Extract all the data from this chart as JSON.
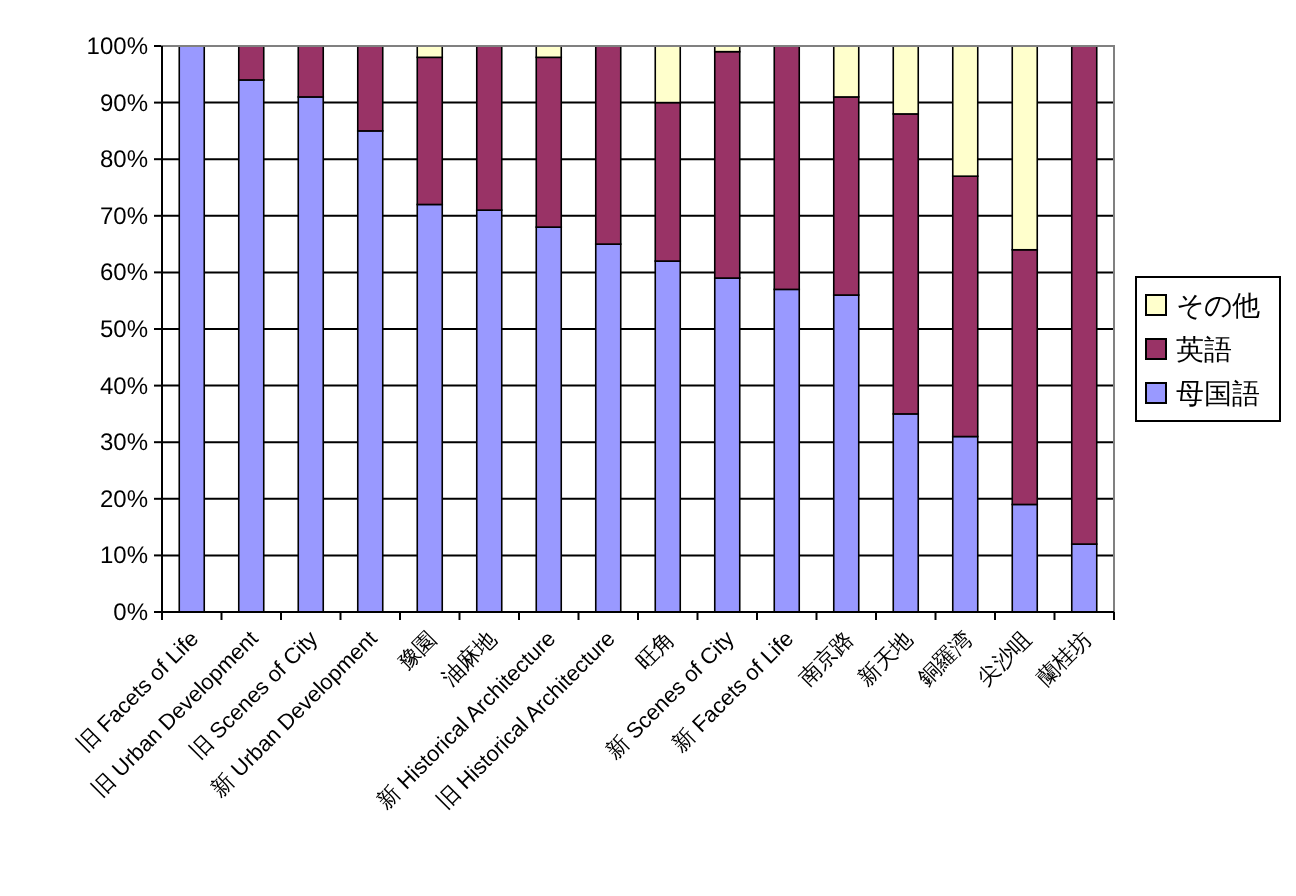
{
  "chart_data": {
    "type": "bar",
    "stacked": true,
    "categories": [
      "旧 Facets of Life",
      "旧 Urban Development",
      "旧 Scenes of City",
      "新 Urban Development",
      "豫園",
      "油麻地",
      "新 Historical Architecture",
      "旧 Historical Architecture",
      "旺角",
      "新 Scenes of City",
      "新 Facets of Life",
      "南京路",
      "新天地",
      "銅羅湾",
      "尖沙咀",
      "蘭桂坊"
    ],
    "series": [
      {
        "name": "母国語",
        "color": "#9999ff",
        "values": [
          100,
          94,
          91,
          85,
          72,
          71,
          68,
          65,
          62,
          59,
          57,
          56,
          35,
          31,
          19,
          12
        ]
      },
      {
        "name": "英語",
        "color": "#993366",
        "values": [
          0,
          6,
          9,
          15,
          26,
          29,
          30,
          35,
          28,
          40,
          43,
          35,
          53,
          46,
          45,
          88
        ]
      },
      {
        "name": "その他",
        "color": "#ffffcc",
        "values": [
          0,
          0,
          0,
          0,
          2,
          0,
          2,
          0,
          10,
          1,
          0,
          9,
          12,
          23,
          36,
          0
        ]
      }
    ],
    "ylim": [
      0,
      100
    ],
    "yticks": [
      {
        "value": 0,
        "label": "0%"
      },
      {
        "value": 10,
        "label": "10%"
      },
      {
        "value": 20,
        "label": "20%"
      },
      {
        "value": 30,
        "label": "30%"
      },
      {
        "value": 40,
        "label": "40%"
      },
      {
        "value": 50,
        "label": "50%"
      },
      {
        "value": 60,
        "label": "60%"
      },
      {
        "value": 70,
        "label": "70%"
      },
      {
        "value": 80,
        "label": "80%"
      },
      {
        "value": 90,
        "label": "90%"
      },
      {
        "value": 100,
        "label": "100%"
      }
    ],
    "grid": "y",
    "legend": "right"
  }
}
